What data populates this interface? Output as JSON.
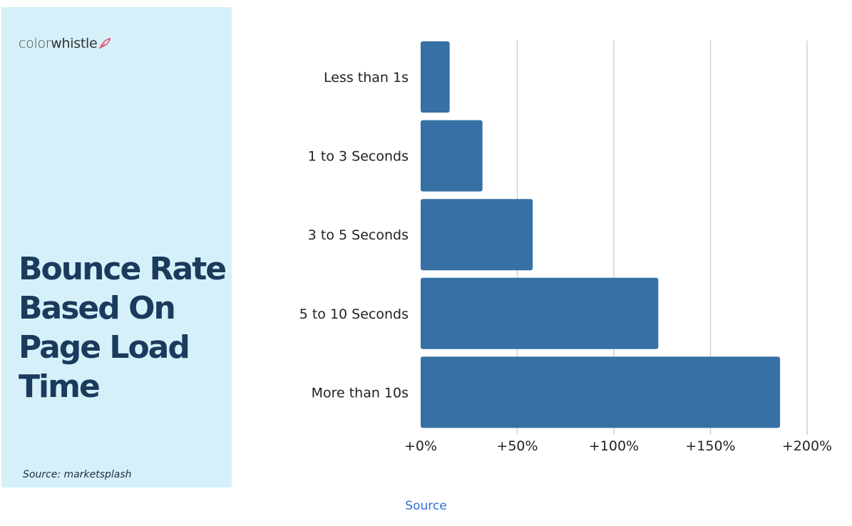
{
  "brand": {
    "prefix": "color",
    "suffix": "whistle",
    "logo_icon": "feather-icon",
    "logo_icon_color": "#e0556a"
  },
  "panel": {
    "title": "Bounce Rate\nBased On\nPage Load\nTime",
    "source": "Source: marketsplash",
    "background": "#d6f0fa",
    "title_color": "#1b3a5c"
  },
  "chart_data": {
    "type": "bar",
    "orientation": "horizontal",
    "categories": [
      "Less than 1s",
      "1 to 3 Seconds",
      "3 to 5 Seconds",
      "5 to 10 Seconds",
      "More than 10s"
    ],
    "values": [
      15,
      32,
      58,
      123,
      186
    ],
    "unit": "%",
    "xlim": [
      0,
      200
    ],
    "xticks": [
      "+0%",
      "+50%",
      "+100%",
      "+150%",
      "+200%"
    ],
    "xtick_values": [
      0,
      50,
      100,
      150,
      200
    ],
    "grid": "vertical",
    "bar_color": "#3670a4",
    "title": "",
    "xlabel": "",
    "ylabel": ""
  },
  "footer": {
    "link_label": "Source",
    "link_color": "#2f6fd6"
  }
}
